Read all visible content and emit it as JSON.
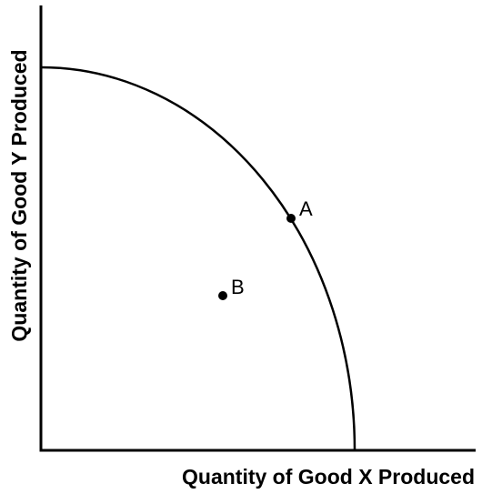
{
  "x_axis_label": "Quantity of Good X Produced",
  "y_axis_label": "Quantity of Good Y Produced",
  "points": [
    {
      "label": "A"
    },
    {
      "label": "B"
    }
  ]
}
